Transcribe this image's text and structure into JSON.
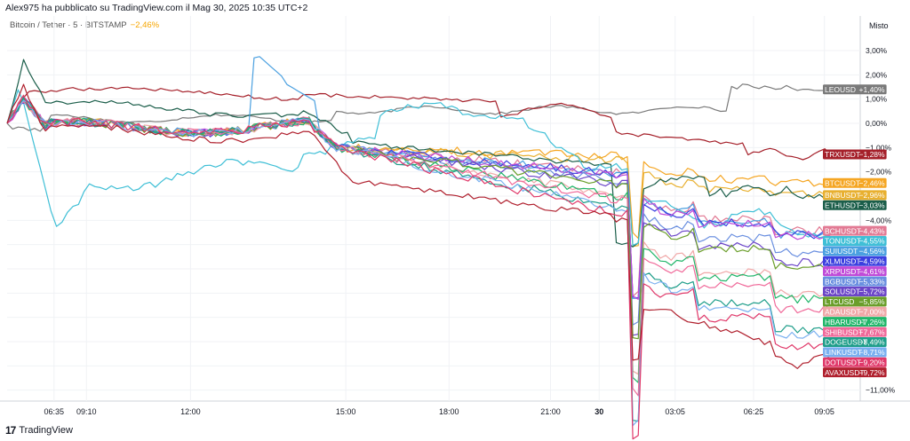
{
  "header": {
    "published": "Alex975 ha pubblicato su TradingView.com il Mag 30, 2025 10:35 UTC+2"
  },
  "symbol": {
    "name": "Bitcoin / Tether · 5 · BITSTAMP",
    "change": "−2,46%"
  },
  "axis_mode": "Misto",
  "brand": {
    "logo": "17",
    "name": "TradingView"
  },
  "chart_data": {
    "type": "line",
    "y_unit": "%",
    "ylim": [
      -11.5,
      3.3
    ],
    "y_ticks": [
      {
        "value": 3,
        "label": "3,00%"
      },
      {
        "value": 2,
        "label": "2,00%"
      },
      {
        "value": 1,
        "label": "1,00%"
      },
      {
        "value": 0,
        "label": "0,00%"
      },
      {
        "value": -1,
        "label": "−1,00%"
      },
      {
        "value": -2,
        "label": "−2,00%"
      },
      {
        "value": -4,
        "label": "−4,00%"
      },
      {
        "value": -11,
        "label": "−11,00%"
      }
    ],
    "x_ticks": [
      {
        "t": 0.055,
        "label": "06:35",
        "bold": false
      },
      {
        "t": 0.093,
        "label": "09:10",
        "bold": false
      },
      {
        "t": 0.215,
        "label": "12:00",
        "bold": false
      },
      {
        "t": 0.397,
        "label": "15:00",
        "bold": false
      },
      {
        "t": 0.518,
        "label": "18:00",
        "bold": false
      },
      {
        "t": 0.637,
        "label": "21:00",
        "bold": false
      },
      {
        "t": 0.694,
        "label": "30",
        "bold": true
      },
      {
        "t": 0.783,
        "label": "03:05",
        "bold": false
      },
      {
        "t": 0.875,
        "label": "06:25",
        "bold": false
      },
      {
        "t": 0.958,
        "label": "09:05",
        "bold": false
      }
    ],
    "x_grid_t": [
      0.055,
      0.093,
      0.215,
      0.397,
      0.518,
      0.637,
      0.694,
      0.783,
      0.875,
      0.958
    ],
    "series": [
      {
        "name": "LEOUSD",
        "label": "+1,40%",
        "final": 1.4,
        "color": "#7a7a7a",
        "shape": "leo"
      },
      {
        "name": "TRXUSDT",
        "label": "−1,28%",
        "final": -1.28,
        "color": "#a5202a",
        "shape": "trx"
      },
      {
        "name": "BTCUSDT",
        "label": "−2,46%",
        "final": -2.46,
        "color": "#f5a623",
        "shape": "mid"
      },
      {
        "name": "BNBUSDT",
        "label": "−2,96%",
        "final": -2.96,
        "color": "#e8b030",
        "shape": "mid"
      },
      {
        "name": "ETHUSDT",
        "label": "−3,03%",
        "final": -3.03,
        "color": "#1b5e4a",
        "shape": "eth"
      },
      {
        "name": "BCHUSDT",
        "label": "−4,43%",
        "final": -4.43,
        "color": "#e27a94",
        "shape": "mid"
      },
      {
        "name": "TONUSDT",
        "label": "−4,55%",
        "final": -4.55,
        "color": "#3fbfd6",
        "shape": "ton"
      },
      {
        "name": "SUIUSDT",
        "label": "−4,56%",
        "final": -4.56,
        "color": "#4aa0e0",
        "shape": "sui"
      },
      {
        "name": "XLMUSDT",
        "label": "−4,59%",
        "final": -4.59,
        "color": "#3b3fe0",
        "shape": "mid"
      },
      {
        "name": "XRPUSDT",
        "label": "−4,61%",
        "final": -4.61,
        "color": "#c04bd8",
        "shape": "mid"
      },
      {
        "name": "BGBUSDT",
        "label": "−5,33%",
        "final": -5.33,
        "color": "#6a8fe0",
        "shape": "mid"
      },
      {
        "name": "SOLUSDT",
        "label": "−5,72%",
        "final": -5.72,
        "color": "#6b45c8",
        "shape": "mid"
      },
      {
        "name": "LTCUSD",
        "label": "−5,85%",
        "final": -5.85,
        "color": "#6a9e2a",
        "shape": "mid"
      },
      {
        "name": "ADAUSDT",
        "label": "−7,00%",
        "final": -7.0,
        "color": "#f0a8a8",
        "shape": "mid"
      },
      {
        "name": "HBARUSDT",
        "label": "−7,26%",
        "final": -7.26,
        "color": "#21b66a",
        "shape": "mid"
      },
      {
        "name": "SHIBUSDT",
        "label": "−7,67%",
        "final": -7.67,
        "color": "#f06a9a",
        "shape": "mid"
      },
      {
        "name": "DOGEUSDT",
        "label": "−8,49%",
        "final": -8.49,
        "color": "#1f9e8a",
        "shape": "mid"
      },
      {
        "name": "LINKUSDT",
        "label": "−8,71%",
        "final": -8.71,
        "color": "#7ab0f0",
        "shape": "mid"
      },
      {
        "name": "DOTUSDT",
        "label": "−9,20%",
        "final": -9.2,
        "color": "#e0396a",
        "shape": "mid"
      },
      {
        "name": "AVAXUSDT",
        "label": "−9,72%",
        "final": -9.72,
        "color": "#b0202e",
        "shape": "avax"
      }
    ]
  }
}
